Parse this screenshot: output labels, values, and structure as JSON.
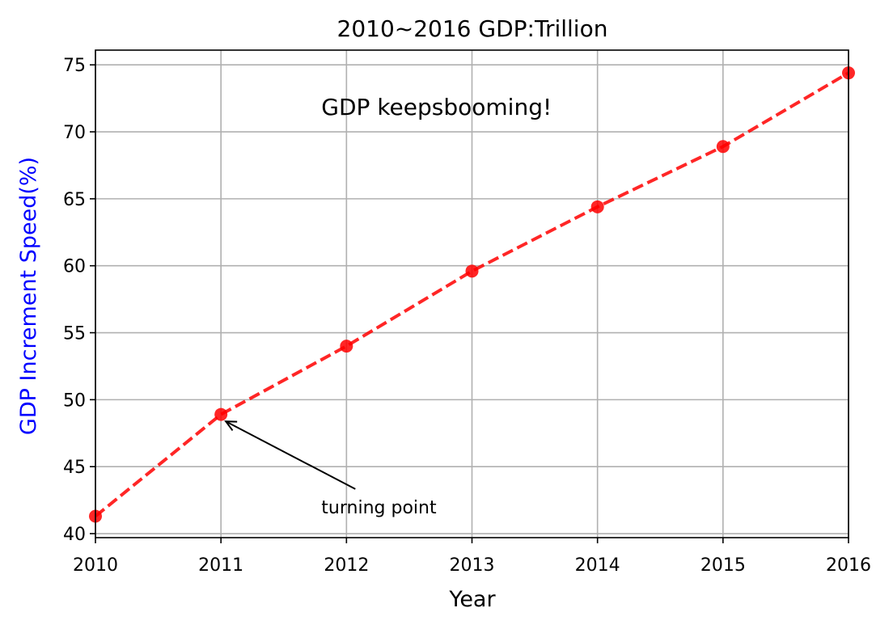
{
  "chart_data": {
    "type": "line",
    "title": "2010~2016 GDP:Trillion",
    "xlabel": "Year",
    "ylabel": "GDP Increment Speed(%)",
    "ylabel_color": "#0000ff",
    "x": [
      2010,
      2011,
      2012,
      2013,
      2014,
      2015,
      2016
    ],
    "series": [
      {
        "values": [
          41.3,
          48.9,
          54.0,
          59.6,
          64.4,
          68.9,
          74.4
        ],
        "color": "#ff0000",
        "line_style": "dashed",
        "marker": "circle"
      }
    ],
    "xlim": [
      2010,
      2016
    ],
    "ylim": [
      39.7,
      76.1
    ],
    "xticks": [
      "2010",
      "2011",
      "2012",
      "2013",
      "2014",
      "2015",
      "2016"
    ],
    "yticks": [
      "40",
      "45",
      "50",
      "55",
      "60",
      "65",
      "70",
      "75"
    ],
    "ytick_values": [
      40,
      45,
      50,
      55,
      60,
      65,
      70,
      75
    ],
    "grid": true,
    "annotations": [
      {
        "text": "GDP keepsbooming!",
        "x": 2011.8,
        "y": 72
      },
      {
        "text": "turning point",
        "x": 2011.8,
        "y": 42,
        "arrow_to": [
          2011,
          48.5
        ]
      }
    ]
  }
}
